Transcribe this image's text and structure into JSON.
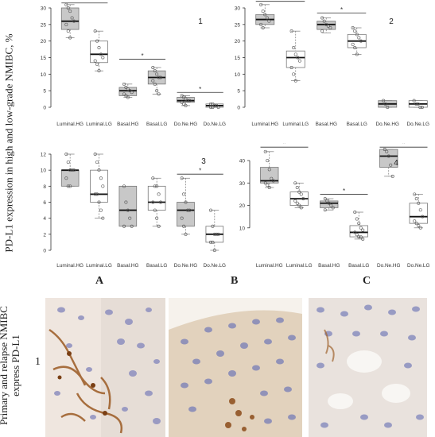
{
  "figure": {
    "y_axis_label": "PD-L1 expression in high and low-grade NMIBC, %",
    "micro_label_lines": [
      "Primary and relapse NMIBC",
      "express PD-L1"
    ],
    "micro_row_number": "1",
    "micro_columns": [
      "A",
      "B",
      "C"
    ]
  },
  "chart_data": [
    {
      "type": "box",
      "panel_label": "1",
      "categories": [
        "Luminal.HG",
        "Luminal.LG",
        "Basal.HG",
        "Basal.LG",
        "Do.Ne.HG",
        "Do.Ne.LG"
      ],
      "ylim": [
        0,
        30
      ],
      "yticks": [
        0,
        5,
        10,
        15,
        20,
        25,
        30
      ],
      "boxes": [
        {
          "min": 21,
          "q1": 23.5,
          "median": 26,
          "q3": 30,
          "max": 31,
          "fill": "#c8c8c8"
        },
        {
          "min": 11,
          "q1": 13.5,
          "median": 16,
          "q3": 20,
          "max": 23,
          "fill": "#ffffff"
        },
        {
          "min": 3,
          "q1": 3.5,
          "median": 5,
          "q3": 6,
          "max": 7,
          "fill": "#c8c8c8"
        },
        {
          "min": 4,
          "q1": 7,
          "median": 9,
          "q3": 11,
          "max": 12,
          "fill": "#c8c8c8"
        },
        {
          "min": 0.5,
          "q1": 1.5,
          "median": 2,
          "q3": 3,
          "max": 3.5,
          "fill": "#c8c8c8"
        },
        {
          "min": 0,
          "q1": 0,
          "median": 0.5,
          "q3": 1,
          "max": 1,
          "fill": "#ffffff"
        }
      ],
      "points": [
        [
          31,
          30,
          29,
          27,
          26,
          25,
          23,
          21
        ],
        [
          23,
          20,
          18,
          16,
          15,
          14,
          13,
          11
        ],
        [
          7,
          6,
          5.5,
          5,
          4.5,
          4,
          3.5,
          3
        ],
        [
          12,
          11,
          10,
          9,
          9,
          8,
          7,
          5,
          4
        ],
        [
          3.5,
          3,
          2.5,
          2,
          2,
          1.5,
          1,
          0.5
        ],
        [
          1,
          1,
          0.5,
          0.5,
          0,
          0,
          0
        ]
      ],
      "significance": [
        {
          "from": 0,
          "to": 1,
          "y": 31.5,
          "label": "*"
        },
        {
          "from": 2,
          "to": 3,
          "y": 14.5,
          "label": "*"
        },
        {
          "from": 4,
          "to": 5,
          "y": 4.5,
          "label": "*"
        }
      ]
    },
    {
      "type": "box",
      "panel_label": "2",
      "categories": [
        "Luminal.HG",
        "Luminal.LG",
        "Basal.HG",
        "Basal.LG",
        "Do.Ne.HG",
        "Do.Ne.LG"
      ],
      "ylim": [
        0,
        30
      ],
      "yticks": [
        0,
        5,
        10,
        15,
        20,
        25,
        30
      ],
      "boxes": [
        {
          "min": 24,
          "q1": 25,
          "median": 26.5,
          "q3": 28,
          "max": 31,
          "fill": "#c8c8c8"
        },
        {
          "min": 8,
          "q1": 12,
          "median": 15,
          "q3": 17,
          "max": 23,
          "fill": "#ffffff"
        },
        {
          "min": 22.5,
          "q1": 23.5,
          "median": 25,
          "q3": 26,
          "max": 27,
          "fill": "#c8c8c8"
        },
        {
          "min": 16,
          "q1": 18,
          "median": 20,
          "q3": 22,
          "max": 24,
          "fill": "#ffffff"
        },
        {
          "min": 0,
          "q1": 0,
          "median": 1,
          "q3": 2,
          "max": 2,
          "fill": "#c8c8c8"
        },
        {
          "min": 0,
          "q1": 0,
          "median": 1,
          "q3": 2,
          "max": 2,
          "fill": "#ffffff"
        }
      ],
      "points": [
        [
          31,
          29,
          28,
          27,
          26,
          25,
          24
        ],
        [
          23,
          18,
          16,
          15,
          14,
          12,
          10,
          8
        ],
        [
          27,
          26,
          25,
          24.5,
          24,
          23
        ],
        [
          24,
          23,
          22,
          21,
          20,
          19,
          18,
          16
        ],
        [
          2,
          1,
          0
        ],
        [
          2,
          1,
          1,
          0,
          0
        ]
      ],
      "significance": [
        {
          "from": 0,
          "to": 1,
          "y": 32,
          "label": "*"
        },
        {
          "from": 2,
          "to": 3,
          "y": 28.5,
          "label": "*"
        }
      ]
    },
    {
      "type": "box",
      "panel_label": "3",
      "categories": [
        "Luminal.HG",
        "Luminal.LG",
        "Basal.HG",
        "Basal.LG",
        "Do.Ne.HG",
        "Do.Ne.LG"
      ],
      "ylim": [
        0,
        12
      ],
      "yticks": [
        0,
        2,
        4,
        6,
        8,
        10,
        12
      ],
      "boxes": [
        {
          "min": 8,
          "q1": 8,
          "median": 10,
          "q3": 10,
          "max": 12,
          "fill": "#c8c8c8"
        },
        {
          "min": 4,
          "q1": 6,
          "median": 7,
          "q3": 10,
          "max": 12,
          "fill": "#ffffff"
        },
        {
          "min": 3,
          "q1": 3,
          "median": 5,
          "q3": 8,
          "max": 8,
          "fill": "#c8c8c8"
        },
        {
          "min": 3,
          "q1": 5,
          "median": 6,
          "q3": 8,
          "max": 9,
          "fill": "#ffffff"
        },
        {
          "min": 2,
          "q1": 3,
          "median": 5,
          "q3": 6,
          "max": 9,
          "fill": "#c8c8c8"
        },
        {
          "min": 0,
          "q1": 1,
          "median": 2,
          "q3": 3,
          "max": 5,
          "fill": "#ffffff"
        }
      ],
      "points": [
        [
          12,
          11,
          10,
          10,
          10,
          9,
          8,
          8
        ],
        [
          12,
          11,
          10,
          9,
          8,
          7,
          7,
          6,
          5,
          4
        ],
        [
          8,
          6,
          5,
          4,
          3,
          3
        ],
        [
          9,
          8,
          8,
          7,
          6,
          6,
          5,
          4,
          3
        ],
        [
          9,
          7,
          6,
          5,
          5,
          4,
          3,
          2
        ],
        [
          5,
          3,
          2,
          2,
          2,
          1,
          1,
          0
        ]
      ],
      "significance": [
        {
          "from": 4,
          "to": 5,
          "y": 9.5,
          "label": "*"
        }
      ]
    },
    {
      "type": "box",
      "panel_label": "4",
      "categories": [
        "Luminal.HG",
        "Luminal.LG",
        "Basal.HG",
        "Basal.LG",
        "Do.Ne.HG",
        "Do.Ne.LG"
      ],
      "ylim": [
        0,
        45
      ],
      "yticks": [
        10,
        20,
        30,
        40
      ],
      "boxes": [
        {
          "min": 28,
          "q1": 30,
          "median": 31,
          "q3": 37,
          "max": 44,
          "fill": "#c8c8c8"
        },
        {
          "min": 19,
          "q1": 20,
          "median": 23,
          "q3": 26,
          "max": 30,
          "fill": "#ffffff"
        },
        {
          "min": 18,
          "q1": 19,
          "median": 21,
          "q3": 22,
          "max": 23,
          "fill": "#c8c8c8"
        },
        {
          "min": 5,
          "q1": 6,
          "median": 8,
          "q3": 11,
          "max": 17,
          "fill": "#ffffff"
        },
        {
          "min": 33,
          "q1": 37,
          "median": 42,
          "q3": 45,
          "max": 45,
          "fill": "#c8c8c8"
        },
        {
          "min": 10,
          "q1": 12,
          "median": 15,
          "q3": 21,
          "max": 25,
          "fill": "#ffffff"
        }
      ],
      "points": [
        [
          44,
          40,
          36,
          32,
          31,
          30,
          29,
          28
        ],
        [
          30,
          28,
          26,
          25,
          23,
          22,
          21,
          20,
          19
        ],
        [
          23,
          22,
          21,
          20,
          19,
          18
        ],
        [
          17,
          14,
          12,
          10,
          9,
          8,
          7,
          6,
          6,
          5
        ],
        [
          45,
          44,
          42,
          38,
          33
        ],
        [
          25,
          23,
          21,
          18,
          15,
          13,
          12,
          11,
          10
        ]
      ],
      "significance": [
        {
          "from": 0,
          "to": 1,
          "y": 46,
          "label": "*"
        },
        {
          "from": 2,
          "to": 3,
          "y": 25,
          "label": "*"
        },
        {
          "from": 4,
          "to": 5,
          "y": 46,
          "label": "*"
        }
      ]
    }
  ]
}
